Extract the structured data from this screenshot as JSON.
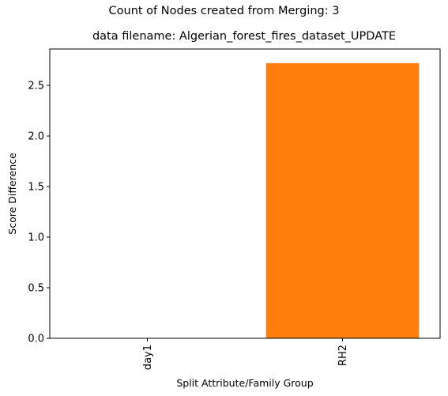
{
  "figure": {
    "suptitle": "Count of Nodes created from Merging: 3"
  },
  "chart_data": {
    "type": "bar",
    "title": "data filename: Algerian_forest_fires_dataset_UPDATE",
    "xlabel": "Split Attribute/Family Group",
    "ylabel": "Score Difference",
    "categories": [
      "day1",
      "RH2"
    ],
    "values": [
      0.0,
      2.72
    ],
    "bar_colors": [
      "#1f77b4",
      "#ff7f0e"
    ],
    "ylim": [
      0,
      2.86
    ],
    "yticks": [
      0.0,
      0.5,
      1.0,
      1.5,
      2.0,
      2.5
    ],
    "ytick_labels": [
      "0.0",
      "0.5",
      "1.0",
      "1.5",
      "2.0",
      "2.5"
    ],
    "xtick_rotation": "vertical",
    "grid": false,
    "legend": "none"
  }
}
